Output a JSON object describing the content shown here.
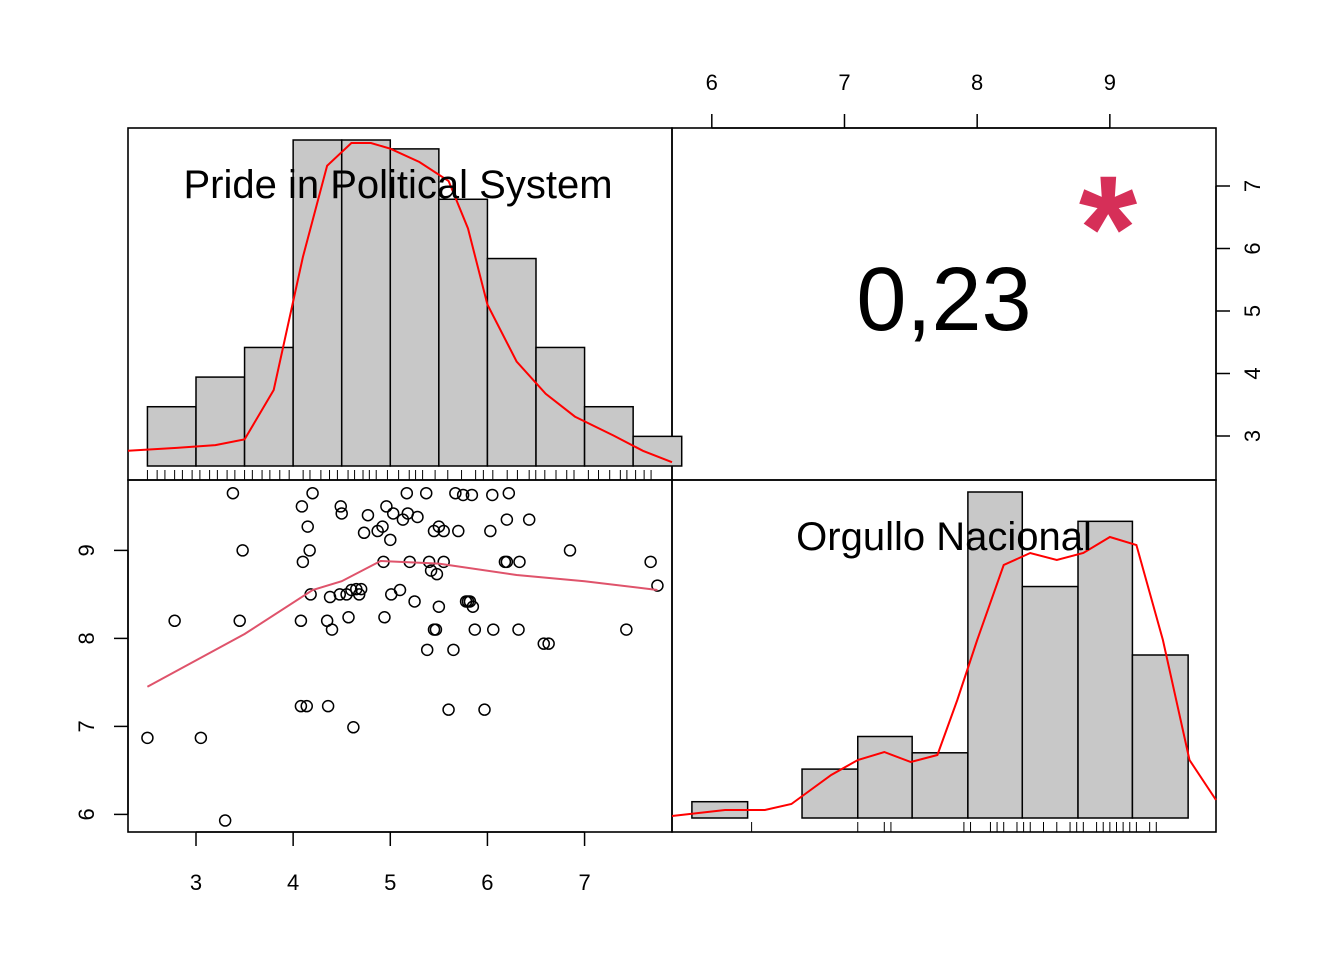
{
  "chart_data": [
    {
      "type": "histogram",
      "panel": "top-left",
      "label": "Pride in Political System",
      "bins": [
        {
          "from": 2.5,
          "to": 3.0,
          "count": 2
        },
        {
          "from": 3.0,
          "to": 3.5,
          "count": 3
        },
        {
          "from": 3.5,
          "to": 4.0,
          "count": 4
        },
        {
          "from": 4.0,
          "to": 4.5,
          "count": 11
        },
        {
          "from": 4.5,
          "to": 5.0,
          "count": 11
        },
        {
          "from": 5.0,
          "to": 5.5,
          "count": 10.7
        },
        {
          "from": 5.5,
          "to": 6.0,
          "count": 9
        },
        {
          "from": 6.0,
          "to": 6.5,
          "count": 7
        },
        {
          "from": 6.5,
          "to": 7.0,
          "count": 4
        },
        {
          "from": 7.0,
          "to": 7.5,
          "count": 2
        },
        {
          "from": 7.5,
          "to": 8.0,
          "count": 1
        }
      ],
      "density_line_color": "#ff0000",
      "bar_color": "#c8c8c8",
      "xlim": [
        2.3,
        7.9
      ],
      "x_ticks": [
        "3",
        "4",
        "5",
        "6",
        "7"
      ]
    },
    {
      "type": "correlation",
      "panel": "top-right",
      "value": "0,23",
      "significance": "*",
      "significance_color": "#d62f58",
      "y_ticks": [
        "3",
        "4",
        "5",
        "6",
        "7"
      ],
      "x_ticks": [
        "6",
        "7",
        "8",
        "9"
      ]
    },
    {
      "type": "scatter",
      "panel": "bottom-left",
      "x_ticks": [
        "3",
        "4",
        "5",
        "6",
        "7"
      ],
      "y_ticks": [
        "6",
        "7",
        "8",
        "9"
      ],
      "xlim": [
        2.3,
        7.9
      ],
      "ylim": [
        5.8,
        9.8
      ],
      "smooth_color": "#df536b",
      "smooth": [
        [
          2.5,
          7.45
        ],
        [
          3.5,
          8.05
        ],
        [
          4.2,
          8.55
        ],
        [
          4.5,
          8.65
        ],
        [
          4.9,
          8.88
        ],
        [
          5.5,
          8.85
        ],
        [
          6.3,
          8.72
        ],
        [
          7.0,
          8.65
        ],
        [
          7.75,
          8.55
        ]
      ],
      "points": [
        [
          2.5,
          6.87
        ],
        [
          2.78,
          8.2
        ],
        [
          3.05,
          6.87
        ],
        [
          3.3,
          5.93
        ],
        [
          3.38,
          9.65
        ],
        [
          3.45,
          8.2
        ],
        [
          3.48,
          9.0
        ],
        [
          4.08,
          8.2
        ],
        [
          4.08,
          7.23
        ],
        [
          4.09,
          9.5
        ],
        [
          4.1,
          8.87
        ],
        [
          4.14,
          7.23
        ],
        [
          4.15,
          9.27
        ],
        [
          4.17,
          9.0
        ],
        [
          4.18,
          8.5
        ],
        [
          4.2,
          9.65
        ],
        [
          4.35,
          8.2
        ],
        [
          4.36,
          7.23
        ],
        [
          4.38,
          8.47
        ],
        [
          4.4,
          8.1
        ],
        [
          4.48,
          8.5
        ],
        [
          4.49,
          9.5
        ],
        [
          4.5,
          9.42
        ],
        [
          4.55,
          8.5
        ],
        [
          4.57,
          8.24
        ],
        [
          4.6,
          8.55
        ],
        [
          4.62,
          6.99
        ],
        [
          4.65,
          8.56
        ],
        [
          4.68,
          8.5
        ],
        [
          4.7,
          8.56
        ],
        [
          4.73,
          9.2
        ],
        [
          4.77,
          9.4
        ],
        [
          4.87,
          9.22
        ],
        [
          4.92,
          9.27
        ],
        [
          4.93,
          8.87
        ],
        [
          4.94,
          8.24
        ],
        [
          4.96,
          9.5
        ],
        [
          5.0,
          9.12
        ],
        [
          5.01,
          8.5
        ],
        [
          5.03,
          9.42
        ],
        [
          5.1,
          8.55
        ],
        [
          5.13,
          9.35
        ],
        [
          5.17,
          9.65
        ],
        [
          5.18,
          9.42
        ],
        [
          5.2,
          8.87
        ],
        [
          5.25,
          8.42
        ],
        [
          5.28,
          9.38
        ],
        [
          5.37,
          9.65
        ],
        [
          5.38,
          7.87
        ],
        [
          5.4,
          8.87
        ],
        [
          5.42,
          8.77
        ],
        [
          5.45,
          9.22
        ],
        [
          5.45,
          8.1
        ],
        [
          5.47,
          8.1
        ],
        [
          5.48,
          8.73
        ],
        [
          5.5,
          8.36
        ],
        [
          5.5,
          9.27
        ],
        [
          5.55,
          9.22
        ],
        [
          5.55,
          8.87
        ],
        [
          5.6,
          7.19
        ],
        [
          5.65,
          7.87
        ],
        [
          5.67,
          9.65
        ],
        [
          5.7,
          9.22
        ],
        [
          5.75,
          9.63
        ],
        [
          5.78,
          8.42
        ],
        [
          5.8,
          8.42
        ],
        [
          5.82,
          8.42
        ],
        [
          5.84,
          9.63
        ],
        [
          5.85,
          8.36
        ],
        [
          5.87,
          8.1
        ],
        [
          5.97,
          7.19
        ],
        [
          6.03,
          9.22
        ],
        [
          6.05,
          9.63
        ],
        [
          6.06,
          8.1
        ],
        [
          6.18,
          8.87
        ],
        [
          6.2,
          9.35
        ],
        [
          6.2,
          8.87
        ],
        [
          6.22,
          9.65
        ],
        [
          6.32,
          8.1
        ],
        [
          6.33,
          8.87
        ],
        [
          6.43,
          9.35
        ],
        [
          6.58,
          7.94
        ],
        [
          6.63,
          7.94
        ],
        [
          6.85,
          9.0
        ],
        [
          7.43,
          8.1
        ],
        [
          7.68,
          8.87
        ],
        [
          7.75,
          8.6
        ]
      ]
    },
    {
      "type": "histogram",
      "panel": "bottom-right",
      "label": "Orgullo Nacional",
      "bins": [
        {
          "from": 5.85,
          "to": 6.27,
          "count": 0.5
        },
        {
          "from": 6.27,
          "to": 6.68,
          "count": 0
        },
        {
          "from": 6.68,
          "to": 7.1,
          "count": 1.5
        },
        {
          "from": 7.1,
          "to": 7.51,
          "count": 2.5
        },
        {
          "from": 7.51,
          "to": 7.93,
          "count": 2.0
        },
        {
          "from": 7.93,
          "to": 8.34,
          "count": 10.0
        },
        {
          "from": 8.34,
          "to": 8.76,
          "count": 7.1
        },
        {
          "from": 8.76,
          "to": 9.17,
          "count": 9.1
        },
        {
          "from": 9.17,
          "to": 9.59,
          "count": 5.0
        }
      ],
      "density_line_color": "#ff0000",
      "bar_color": "#c8c8c8",
      "xlim": [
        5.7,
        9.8
      ],
      "x_ticks": [
        "6",
        "7",
        "8",
        "9"
      ]
    }
  ]
}
